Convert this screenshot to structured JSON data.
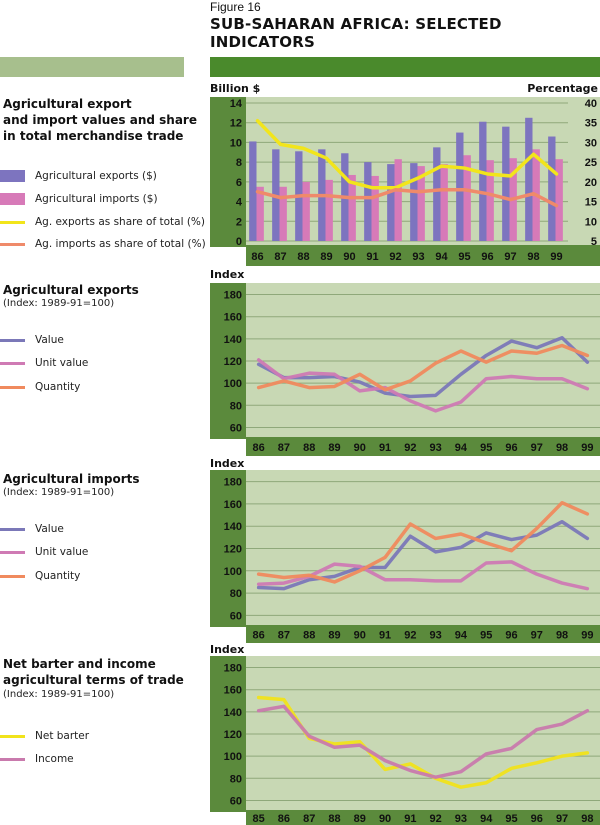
{
  "header": {
    "figure_number": "Figure 16",
    "title": "SUB-SAHARAN AFRICA: SELECTED INDICATORS"
  },
  "colors": {
    "axis_strip": "#5b8a3c",
    "plot_bg": "#c8d8b4",
    "gridline": "#8fa87a",
    "side_bar": "#a7bf8d",
    "top_bar": "#4a8a2c",
    "exports_bar": "#7d74bf",
    "imports_bar": "#d77ab8",
    "exports_share": "#f2e51b",
    "imports_share": "#ef8a6a",
    "value": "#7b78b8",
    "unit_value": "#cf7ab4",
    "quantity": "#f08a5e",
    "net_barter": "#f1e31b",
    "income": "#c97aad"
  },
  "sections": [
    {
      "title_lines": [
        "Agricultural export",
        "and import values and share",
        "in total merchandise trade"
      ],
      "subtitle": "",
      "legend": [
        {
          "label": "Agricultural exports ($)",
          "kind": "bar",
          "color_key": "exports_bar"
        },
        {
          "label": "Agricultural imports ($)",
          "kind": "bar",
          "color_key": "imports_bar"
        },
        {
          "label": "Ag. exports as share of total (%)",
          "kind": "line",
          "color_key": "exports_share"
        },
        {
          "label": "Ag. imports as share of total (%)",
          "kind": "line",
          "color_key": "imports_share"
        }
      ]
    },
    {
      "title_lines": [
        "Agricultural exports"
      ],
      "subtitle": "(Index: 1989-91=100)",
      "legend": [
        {
          "label": "Value",
          "kind": "line",
          "color_key": "value"
        },
        {
          "label": "Unit value",
          "kind": "line",
          "color_key": "unit_value"
        },
        {
          "label": "Quantity",
          "kind": "line",
          "color_key": "quantity"
        }
      ]
    },
    {
      "title_lines": [
        "Agricultural imports"
      ],
      "subtitle": "(Index: 1989-91=100)",
      "legend": [
        {
          "label": "Value",
          "kind": "line",
          "color_key": "value"
        },
        {
          "label": "Unit value",
          "kind": "line",
          "color_key": "unit_value"
        },
        {
          "label": "Quantity",
          "kind": "line",
          "color_key": "quantity"
        }
      ]
    },
    {
      "title_lines": [
        "Net barter and income",
        "agricultural terms of trade"
      ],
      "subtitle": "(Index: 1989-91=100)",
      "legend": [
        {
          "label": "Net barter",
          "kind": "line",
          "color_key": "net_barter"
        },
        {
          "label": "Income",
          "kind": "line",
          "color_key": "income"
        }
      ]
    }
  ],
  "chart_data": [
    {
      "type": "bar",
      "title": "Agricultural export and import values and share in total merchandise trade",
      "ylabel": "Billion $",
      "ylabel_right": "Percentage",
      "categories": [
        "86",
        "87",
        "88",
        "89",
        "90",
        "91",
        "92",
        "93",
        "94",
        "95",
        "96",
        "97",
        "98",
        "99"
      ],
      "ylim": [
        0,
        14
      ],
      "yticks": [
        0,
        2,
        4,
        6,
        8,
        10,
        12,
        14
      ],
      "ylim_right": [
        5,
        40
      ],
      "yticks_right": [
        5,
        10,
        15,
        20,
        25,
        30,
        35,
        40
      ],
      "grid": true,
      "series": [
        {
          "name": "Agricultural exports ($)",
          "kind": "bar",
          "axis": "left",
          "color_key": "exports_bar",
          "values": [
            10.1,
            9.3,
            9.1,
            9.3,
            8.9,
            8.0,
            7.8,
            7.9,
            9.5,
            11.0,
            12.1,
            11.6,
            12.5,
            10.6
          ]
        },
        {
          "name": "Agricultural imports ($)",
          "kind": "bar",
          "axis": "left",
          "color_key": "imports_bar",
          "values": [
            5.5,
            5.5,
            6.0,
            6.2,
            6.7,
            6.6,
            8.3,
            7.6,
            7.8,
            8.7,
            8.2,
            8.4,
            9.3,
            8.3
          ]
        },
        {
          "name": "Ag. exports as share of total (%)",
          "kind": "line",
          "axis": "right",
          "color_key": "exports_share",
          "values": [
            35.5,
            29.5,
            28.5,
            26.0,
            20.0,
            18.5,
            18.5,
            21.0,
            24.0,
            23.5,
            22.0,
            21.5,
            27.0,
            22.0
          ]
        },
        {
          "name": "Ag. imports as share of total (%)",
          "kind": "line",
          "axis": "right",
          "color_key": "imports_share",
          "values": [
            17.5,
            16.0,
            16.5,
            16.5,
            16.0,
            16.0,
            18.0,
            17.5,
            18.0,
            18.0,
            17.0,
            15.5,
            17.0,
            14.0
          ]
        }
      ]
    },
    {
      "type": "line",
      "title": "Agricultural exports (Index: 1989-91=100)",
      "ylabel": "Index",
      "categories": [
        "86",
        "87",
        "88",
        "89",
        "90",
        "91",
        "92",
        "93",
        "94",
        "95",
        "96",
        "97",
        "98",
        "99"
      ],
      "ylim": [
        55,
        185
      ],
      "yticks": [
        60,
        80,
        100,
        120,
        140,
        160,
        180
      ],
      "grid": true,
      "series": [
        {
          "name": "Value",
          "color_key": "value",
          "values": [
            117,
            105,
            105,
            106,
            101,
            91,
            88,
            89,
            108,
            125,
            138,
            132,
            141,
            119
          ]
        },
        {
          "name": "Unit value",
          "color_key": "unit_value",
          "values": [
            121,
            104,
            109,
            108,
            93,
            96,
            84,
            75,
            83,
            104,
            106,
            104,
            104,
            95
          ]
        },
        {
          "name": "Quantity",
          "color_key": "quantity",
          "values": [
            96,
            102,
            96,
            97,
            108,
            94,
            102,
            118,
            129,
            119,
            129,
            127,
            134,
            125
          ]
        }
      ]
    },
    {
      "type": "line",
      "title": "Agricultural imports (Index: 1989-91=100)",
      "ylabel": "Index",
      "categories": [
        "86",
        "87",
        "88",
        "89",
        "90",
        "91",
        "92",
        "93",
        "94",
        "95",
        "96",
        "97",
        "98",
        "99"
      ],
      "ylim": [
        55,
        185
      ],
      "yticks": [
        60,
        80,
        100,
        120,
        140,
        160,
        180
      ],
      "grid": true,
      "series": [
        {
          "name": "Value",
          "color_key": "value",
          "values": [
            85,
            84,
            92,
            95,
            103,
            103,
            131,
            117,
            121,
            134,
            128,
            132,
            144,
            129
          ]
        },
        {
          "name": "Unit value",
          "color_key": "unit_value",
          "values": [
            88,
            89,
            95,
            106,
            104,
            92,
            92,
            91,
            91,
            107,
            108,
            97,
            89,
            84
          ]
        },
        {
          "name": "Quantity",
          "color_key": "quantity",
          "values": [
            97,
            94,
            96,
            90,
            100,
            112,
            142,
            129,
            133,
            125,
            118,
            138,
            161,
            151
          ]
        }
      ]
    },
    {
      "type": "line",
      "title": "Net barter and income agricultural terms of trade (Index: 1989-91=100)",
      "ylabel": "Index",
      "categories": [
        "85",
        "86",
        "87",
        "88",
        "89",
        "90",
        "91",
        "92",
        "93",
        "94",
        "95",
        "96",
        "97",
        "98"
      ],
      "ylim": [
        55,
        185
      ],
      "yticks": [
        60,
        80,
        100,
        120,
        140,
        160,
        180
      ],
      "grid": true,
      "series": [
        {
          "name": "Net barter",
          "color_key": "net_barter",
          "values": [
            153,
            151,
            116,
            111,
            113,
            88,
            93,
            80,
            72,
            76,
            89,
            94,
            100,
            103
          ]
        },
        {
          "name": "Income",
          "color_key": "income",
          "values": [
            141,
            145,
            118,
            108,
            110,
            96,
            87,
            81,
            86,
            102,
            107,
            124,
            129,
            141
          ]
        }
      ]
    }
  ]
}
